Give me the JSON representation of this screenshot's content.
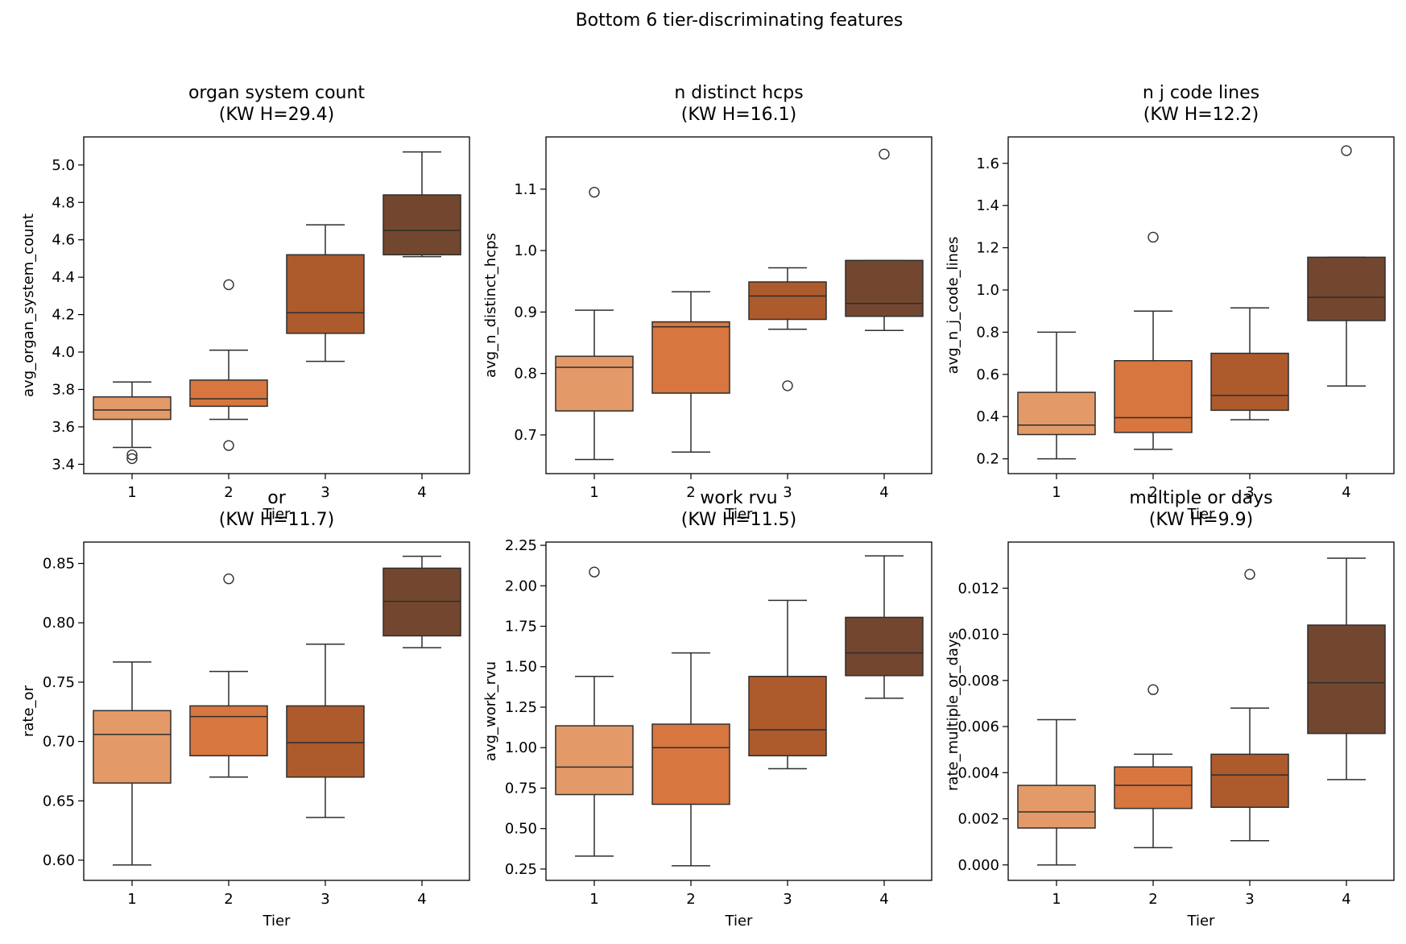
{
  "figure_title": "Bottom 6 tier-discriminating features",
  "colors": {
    "tier_fill": [
      "#e39a68",
      "#d8763f",
      "#ad5a2c",
      "#73472f"
    ],
    "edge": "#2e2e2e",
    "background": "#ffffff"
  },
  "chart_data": [
    {
      "type": "box",
      "title_line1": "organ system count",
      "title_line2": "(KW H=29.4)",
      "xlabel": "Tier",
      "ylabel": "avg_organ_system_count",
      "categories": [
        "1",
        "2",
        "3",
        "4"
      ],
      "ylim": [
        3.35,
        5.15
      ],
      "yticks": [
        3.4,
        3.6,
        3.8,
        4.0,
        4.2,
        4.4,
        4.6,
        4.8,
        5.0
      ],
      "ytick_labels": [
        "3.4",
        "3.6",
        "3.8",
        "4.0",
        "4.2",
        "4.4",
        "4.6",
        "4.8",
        "5.0"
      ],
      "boxes": [
        {
          "tier": "1",
          "whislo": 3.49,
          "q1": 3.64,
          "med": 3.69,
          "q3": 3.76,
          "whishi": 3.84,
          "fliers": [
            3.45,
            3.43
          ]
        },
        {
          "tier": "2",
          "whislo": 3.64,
          "q1": 3.71,
          "med": 3.75,
          "q3": 3.85,
          "whishi": 4.01,
          "fliers": [
            4.36,
            3.5
          ]
        },
        {
          "tier": "3",
          "whislo": 3.95,
          "q1": 4.1,
          "med": 4.21,
          "q3": 4.52,
          "whishi": 4.68,
          "fliers": []
        },
        {
          "tier": "4",
          "whislo": 4.51,
          "q1": 4.52,
          "med": 4.65,
          "q3": 4.84,
          "whishi": 5.07,
          "fliers": []
        }
      ]
    },
    {
      "type": "box",
      "title_line1": "n distinct hcps",
      "title_line2": "(KW H=16.1)",
      "xlabel": "Tier",
      "ylabel": "avg_n_distinct_hcps",
      "categories": [
        "1",
        "2",
        "3",
        "4"
      ],
      "ylim": [
        0.637,
        1.185
      ],
      "yticks": [
        0.7,
        0.8,
        0.9,
        1.0,
        1.1
      ],
      "ytick_labels": [
        "0.7",
        "0.8",
        "0.9",
        "1.0",
        "1.1"
      ],
      "boxes": [
        {
          "tier": "1",
          "whislo": 0.66,
          "q1": 0.739,
          "med": 0.81,
          "q3": 0.828,
          "whishi": 0.903,
          "fliers": [
            1.095
          ]
        },
        {
          "tier": "2",
          "whislo": 0.672,
          "q1": 0.768,
          "med": 0.876,
          "q3": 0.884,
          "whishi": 0.933,
          "fliers": []
        },
        {
          "tier": "3",
          "whislo": 0.872,
          "q1": 0.888,
          "med": 0.926,
          "q3": 0.949,
          "whishi": 0.972,
          "fliers": [
            0.78
          ]
        },
        {
          "tier": "4",
          "whislo": 0.87,
          "q1": 0.893,
          "med": 0.914,
          "q3": 0.984,
          "whishi": 0.984,
          "fliers": [
            1.157
          ]
        }
      ]
    },
    {
      "type": "box",
      "title_line1": "n j code lines",
      "title_line2": "(KW H=12.2)",
      "xlabel": "Tier",
      "ylabel": "avg_n_j_code_lines",
      "categories": [
        "1",
        "2",
        "3",
        "4"
      ],
      "ylim": [
        0.13,
        1.725
      ],
      "yticks": [
        0.2,
        0.4,
        0.6,
        0.8,
        1.0,
        1.2,
        1.4,
        1.6
      ],
      "ytick_labels": [
        "0.2",
        "0.4",
        "0.6",
        "0.8",
        "1.0",
        "1.2",
        "1.4",
        "1.6"
      ],
      "boxes": [
        {
          "tier": "1",
          "whislo": 0.2,
          "q1": 0.315,
          "med": 0.36,
          "q3": 0.515,
          "whishi": 0.8,
          "fliers": []
        },
        {
          "tier": "2",
          "whislo": 0.245,
          "q1": 0.325,
          "med": 0.395,
          "q3": 0.665,
          "whishi": 0.9,
          "fliers": [
            1.25
          ]
        },
        {
          "tier": "3",
          "whislo": 0.385,
          "q1": 0.43,
          "med": 0.5,
          "q3": 0.7,
          "whishi": 0.915,
          "fliers": []
        },
        {
          "tier": "4",
          "whislo": 0.545,
          "q1": 0.855,
          "med": 0.965,
          "q3": 1.155,
          "whishi": 1.155,
          "fliers": [
            1.66
          ]
        }
      ]
    },
    {
      "type": "box",
      "title_line1": "or",
      "title_line2": "(KW H=11.7)",
      "xlabel": "Tier",
      "ylabel": "rate_or",
      "categories": [
        "1",
        "2",
        "3",
        "4"
      ],
      "ylim": [
        0.583,
        0.868
      ],
      "yticks": [
        0.6,
        0.65,
        0.7,
        0.75,
        0.8,
        0.85
      ],
      "ytick_labels": [
        "0.60",
        "0.65",
        "0.70",
        "0.75",
        "0.80",
        "0.85"
      ],
      "boxes": [
        {
          "tier": "1",
          "whislo": 0.596,
          "q1": 0.665,
          "med": 0.706,
          "q3": 0.726,
          "whishi": 0.767,
          "fliers": []
        },
        {
          "tier": "2",
          "whislo": 0.67,
          "q1": 0.688,
          "med": 0.721,
          "q3": 0.73,
          "whishi": 0.759,
          "fliers": [
            0.837
          ]
        },
        {
          "tier": "3",
          "whislo": 0.636,
          "q1": 0.67,
          "med": 0.699,
          "q3": 0.73,
          "whishi": 0.782,
          "fliers": []
        },
        {
          "tier": "4",
          "whislo": 0.779,
          "q1": 0.789,
          "med": 0.818,
          "q3": 0.846,
          "whishi": 0.856,
          "fliers": []
        }
      ]
    },
    {
      "type": "box",
      "title_line1": "work rvu",
      "title_line2": "(KW H=11.5)",
      "xlabel": "Tier",
      "ylabel": "avg_work_rvu",
      "categories": [
        "1",
        "2",
        "3",
        "4"
      ],
      "ylim": [
        0.18,
        2.27
      ],
      "yticks": [
        0.25,
        0.5,
        0.75,
        1.0,
        1.25,
        1.5,
        1.75,
        2.0,
        2.25
      ],
      "ytick_labels": [
        "0.25",
        "0.50",
        "0.75",
        "1.00",
        "1.25",
        "1.50",
        "1.75",
        "2.00",
        "2.25"
      ],
      "boxes": [
        {
          "tier": "1",
          "whislo": 0.33,
          "q1": 0.71,
          "med": 0.88,
          "q3": 1.135,
          "whishi": 1.44,
          "fliers": [
            2.085
          ]
        },
        {
          "tier": "2",
          "whislo": 0.27,
          "q1": 0.65,
          "med": 1.0,
          "q3": 1.145,
          "whishi": 1.585,
          "fliers": []
        },
        {
          "tier": "3",
          "whislo": 0.87,
          "q1": 0.95,
          "med": 1.11,
          "q3": 1.44,
          "whishi": 1.91,
          "fliers": []
        },
        {
          "tier": "4",
          "whislo": 1.305,
          "q1": 1.445,
          "med": 1.585,
          "q3": 1.805,
          "whishi": 2.185,
          "fliers": []
        }
      ]
    },
    {
      "type": "box",
      "title_line1": "multiple or days",
      "title_line2": "(KW H=9.9)",
      "xlabel": "Tier",
      "ylabel": "rate_multiple_or_days",
      "categories": [
        "1",
        "2",
        "3",
        "4"
      ],
      "ylim": [
        -0.00067,
        0.014
      ],
      "yticks": [
        0.0,
        0.002,
        0.004,
        0.006,
        0.008,
        0.01,
        0.012
      ],
      "ytick_labels": [
        "0.000",
        "0.002",
        "0.004",
        "0.006",
        "0.008",
        "0.010",
        "0.012"
      ],
      "boxes": [
        {
          "tier": "1",
          "whislo": 0.0,
          "q1": 0.0016,
          "med": 0.0023,
          "q3": 0.00345,
          "whishi": 0.0063,
          "fliers": []
        },
        {
          "tier": "2",
          "whislo": 0.00075,
          "q1": 0.00245,
          "med": 0.00345,
          "q3": 0.00425,
          "whishi": 0.0048,
          "fliers": [
            0.0076
          ]
        },
        {
          "tier": "3",
          "whislo": 0.00105,
          "q1": 0.0025,
          "med": 0.0039,
          "q3": 0.0048,
          "whishi": 0.0068,
          "fliers": [
            0.0126
          ]
        },
        {
          "tier": "4",
          "whislo": 0.0037,
          "q1": 0.0057,
          "med": 0.0079,
          "q3": 0.0104,
          "whishi": 0.0133,
          "fliers": []
        }
      ]
    }
  ]
}
